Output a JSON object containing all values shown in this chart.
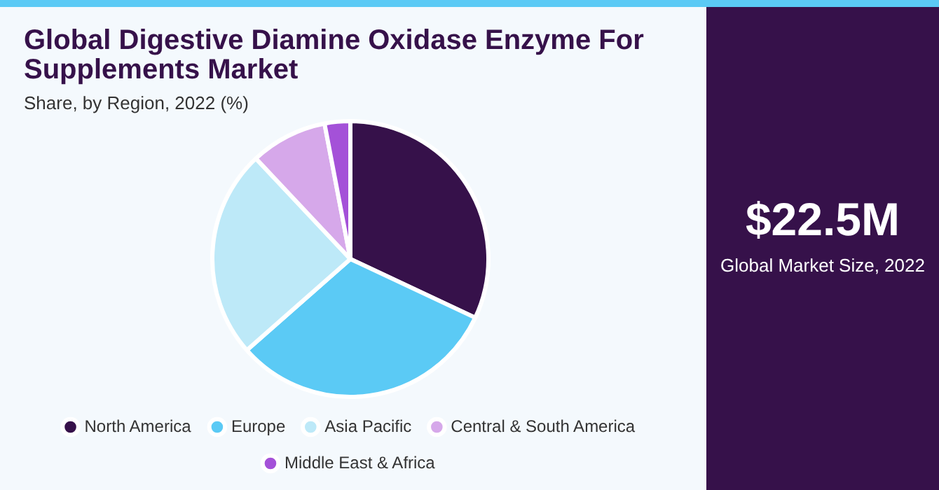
{
  "chart_data": {
    "type": "pie",
    "title": "Global Digestive Diamine Oxidase Enzyme For Supplements Market",
    "subtitle": "Share, by Region, 2022 (%)",
    "categories": [
      "North America",
      "Europe",
      "Asia Pacific",
      "Central & South America",
      "Middle East & Africa"
    ],
    "values": [
      32,
      31.5,
      24.5,
      9,
      3
    ],
    "colors": [
      "#36114a",
      "#5bcaf5",
      "#bde9f8",
      "#d6a8ea",
      "#a451d8"
    ],
    "legend": "bottom",
    "annotations": [
      "$22.5M",
      "Global Market Size, 2022"
    ]
  }
}
